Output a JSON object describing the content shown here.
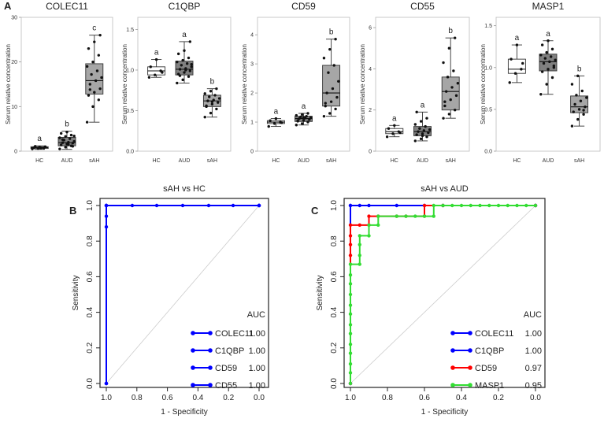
{
  "panels": {
    "a": "A",
    "b": "B",
    "c": "C"
  },
  "box_plots": [
    {
      "title": "COLEC11",
      "ylabel": "Serum relative concentration",
      "yticks": [
        0,
        10,
        20,
        30
      ],
      "ylim": [
        0,
        30
      ],
      "categories": [
        "HC",
        "AUD",
        "sAH"
      ],
      "colors": [
        "#ffffff",
        "#808080",
        "#a6a6a6"
      ],
      "letters": [
        "a",
        "b",
        "c"
      ],
      "boxes": [
        {
          "min": 0.4,
          "q1": 0.6,
          "median": 0.8,
          "q3": 1.0,
          "max": 1.2,
          "points": [
            0.5,
            0.6,
            0.7,
            0.8,
            0.9,
            1.0,
            1.1,
            0.7
          ]
        },
        {
          "min": 0.4,
          "q1": 1.2,
          "median": 1.9,
          "q3": 3.1,
          "max": 4.5,
          "points": [
            0.5,
            0.9,
            1.2,
            1.4,
            1.6,
            1.8,
            1.9,
            2.0,
            2.2,
            2.5,
            2.8,
            3.0,
            3.3,
            3.6,
            4.0,
            4.3,
            1.1,
            2.6,
            1.5,
            3.4
          ]
        },
        {
          "min": 6.5,
          "q1": 12.8,
          "median": 15.8,
          "q3": 19.6,
          "max": 26.0,
          "points": [
            6.5,
            10.0,
            11.5,
            12.5,
            13.2,
            14.0,
            15.0,
            15.8,
            16.5,
            17.2,
            18.0,
            19.0,
            20.0,
            21.5,
            23.0,
            24.5,
            26.0,
            13.8
          ]
        }
      ]
    },
    {
      "title": "C1QBP",
      "ylabel": "Serum relative concentration",
      "yticks": [
        0.0,
        0.5,
        1.0,
        1.5
      ],
      "ylim": [
        0,
        1.65
      ],
      "categories": [
        "HC",
        "AUD",
        "sAH"
      ],
      "colors": [
        "#ffffff",
        "#808080",
        "#a6a6a6"
      ],
      "letters": [
        "a",
        "a",
        "b"
      ],
      "boxes": [
        {
          "min": 0.91,
          "q1": 0.94,
          "median": 0.99,
          "q3": 1.04,
          "max": 1.13,
          "points": [
            0.91,
            0.94,
            0.99,
            1.04,
            1.13,
            0.97
          ]
        },
        {
          "min": 0.84,
          "q1": 0.94,
          "median": 1.01,
          "q3": 1.11,
          "max": 1.35,
          "points": [
            0.84,
            0.88,
            0.92,
            0.95,
            0.97,
            0.99,
            1.01,
            1.02,
            1.04,
            1.06,
            1.08,
            1.1,
            1.12,
            1.15,
            1.2,
            1.24,
            1.35,
            0.93,
            1.0,
            1.07
          ]
        },
        {
          "min": 0.42,
          "q1": 0.55,
          "median": 0.62,
          "q3": 0.69,
          "max": 0.77,
          "points": [
            0.42,
            0.47,
            0.52,
            0.55,
            0.58,
            0.6,
            0.62,
            0.63,
            0.65,
            0.67,
            0.69,
            0.71,
            0.74,
            0.77,
            0.56,
            0.61
          ]
        }
      ]
    },
    {
      "title": "CD59",
      "ylabel": "Serum relative concentration",
      "yticks": [
        0,
        1,
        2,
        3,
        4
      ],
      "ylim": [
        0,
        4.6
      ],
      "categories": [
        "HC",
        "AUD",
        "sAH"
      ],
      "colors": [
        "#ffffff",
        "#808080",
        "#a6a6a6"
      ],
      "letters": [
        "a",
        "a",
        "b"
      ],
      "boxes": [
        {
          "min": 0.85,
          "q1": 0.95,
          "median": 1.0,
          "q3": 1.05,
          "max": 1.12,
          "points": [
            0.85,
            0.95,
            1.0,
            1.05,
            1.12,
            0.98
          ]
        },
        {
          "min": 0.9,
          "q1": 1.02,
          "median": 1.12,
          "q3": 1.2,
          "max": 1.3,
          "points": [
            0.9,
            0.95,
            1.0,
            1.03,
            1.06,
            1.09,
            1.12,
            1.14,
            1.16,
            1.18,
            1.2,
            1.23,
            1.26,
            1.3,
            1.05,
            1.15
          ]
        },
        {
          "min": 1.2,
          "q1": 1.55,
          "median": 2.0,
          "q3": 2.95,
          "max": 3.85,
          "points": [
            1.2,
            1.3,
            1.45,
            1.55,
            1.7,
            1.85,
            2.0,
            2.15,
            2.4,
            2.7,
            2.95,
            3.2,
            3.5,
            3.85,
            1.65
          ]
        }
      ]
    },
    {
      "title": "CD55",
      "ylabel": "Serum relative concentration",
      "yticks": [
        0,
        2,
        4,
        6
      ],
      "ylim": [
        0,
        6.5
      ],
      "categories": [
        "HC",
        "AUD",
        "sAH"
      ],
      "colors": [
        "#ffffff",
        "#808080",
        "#a6a6a6"
      ],
      "letters": [
        "a",
        "a",
        "b"
      ],
      "boxes": [
        {
          "min": 0.7,
          "q1": 0.85,
          "median": 0.95,
          "q3": 1.1,
          "max": 1.25,
          "points": [
            0.7,
            0.85,
            0.95,
            1.1,
            1.25,
            0.9
          ]
        },
        {
          "min": 0.5,
          "q1": 0.75,
          "median": 0.95,
          "q3": 1.2,
          "max": 1.9,
          "points": [
            0.5,
            0.6,
            0.7,
            0.8,
            0.85,
            0.9,
            0.95,
            1.0,
            1.05,
            1.1,
            1.2,
            1.3,
            1.45,
            1.6,
            1.9,
            0.75
          ]
        },
        {
          "min": 1.6,
          "q1": 2.0,
          "median": 2.9,
          "q3": 3.6,
          "max": 5.5,
          "points": [
            1.6,
            1.8,
            2.0,
            2.2,
            2.5,
            2.7,
            2.9,
            3.1,
            3.3,
            3.6,
            3.9,
            4.3,
            5.0,
            5.5,
            2.4
          ]
        }
      ]
    },
    {
      "title": "MASP1",
      "ylabel": "Serum relative concentration",
      "yticks": [
        0.0,
        0.5,
        1.0,
        1.5
      ],
      "ylim": [
        0,
        1.6
      ],
      "categories": [
        "HC",
        "AUD",
        "sAH"
      ],
      "colors": [
        "#ffffff",
        "#808080",
        "#a6a6a6"
      ],
      "letters": [
        "a",
        "a",
        "b"
      ],
      "boxes": [
        {
          "min": 0.82,
          "q1": 0.93,
          "median": 0.98,
          "q3": 1.1,
          "max": 1.27,
          "points": [
            0.82,
            0.93,
            0.98,
            1.1,
            1.27,
            1.05
          ]
        },
        {
          "min": 0.68,
          "q1": 0.96,
          "median": 1.07,
          "q3": 1.16,
          "max": 1.32,
          "points": [
            0.68,
            0.8,
            0.88,
            0.95,
            0.98,
            1.02,
            1.05,
            1.07,
            1.09,
            1.11,
            1.13,
            1.15,
            1.18,
            1.22,
            1.27,
            1.32,
            1.0
          ]
        },
        {
          "min": 0.3,
          "q1": 0.46,
          "median": 0.53,
          "q3": 0.66,
          "max": 0.9,
          "points": [
            0.3,
            0.38,
            0.44,
            0.47,
            0.5,
            0.53,
            0.56,
            0.6,
            0.64,
            0.67,
            0.72,
            0.8,
            0.9,
            0.49
          ]
        }
      ]
    }
  ],
  "chart_data": [
    {
      "type": "line",
      "title": "sAH vs HC",
      "xlabel": "1 - Specificity",
      "ylabel": "Sensitivity",
      "xlim": [
        1.0,
        0.0
      ],
      "ylim": [
        0.0,
        1.0
      ],
      "xticks": [
        "1.0",
        "0.8",
        "0.6",
        "0.4",
        "0.2",
        "0.0"
      ],
      "yticks": [
        "0.0",
        "0.2",
        "0.4",
        "0.6",
        "0.8",
        "1.0"
      ],
      "legend_header": "AUC",
      "series": [
        {
          "name": "COLEC11",
          "auc": "1.00",
          "color": "#0000ff",
          "points": [
            [
              1.0,
              0.0
            ],
            [
              1.0,
              0.88
            ],
            [
              1.0,
              0.94
            ],
            [
              1.0,
              1.0
            ],
            [
              0.83,
              1.0
            ],
            [
              0.67,
              1.0
            ],
            [
              0.5,
              1.0
            ],
            [
              0.33,
              1.0
            ],
            [
              0.17,
              1.0
            ],
            [
              0.0,
              1.0
            ]
          ]
        },
        {
          "name": "C1QBP",
          "auc": "1.00",
          "color": "#0000ff",
          "points": [
            [
              1.0,
              0.0
            ],
            [
              1.0,
              1.0
            ],
            [
              0.0,
              1.0
            ]
          ]
        },
        {
          "name": "CD59",
          "auc": "1.00",
          "color": "#0000ff",
          "points": [
            [
              1.0,
              0.0
            ],
            [
              1.0,
              1.0
            ],
            [
              0.0,
              1.0
            ]
          ]
        },
        {
          "name": "CD55",
          "auc": "1.00",
          "color": "#0000ff",
          "points": [
            [
              1.0,
              0.0
            ],
            [
              1.0,
              1.0
            ],
            [
              0.0,
              1.0
            ]
          ]
        }
      ]
    },
    {
      "type": "line",
      "title": "sAH vs AUD",
      "xlabel": "1 - Specificity",
      "ylabel": "Sensitivity",
      "xlim": [
        1.0,
        0.0
      ],
      "ylim": [
        0.0,
        1.0
      ],
      "xticks": [
        "1.0",
        "0.8",
        "0.6",
        "0.4",
        "0.2",
        "0.0"
      ],
      "yticks": [
        "0.0",
        "0.2",
        "0.4",
        "0.6",
        "0.8",
        "1.0"
      ],
      "legend_header": "AUC",
      "series": [
        {
          "name": "COLEC11",
          "auc": "1.00",
          "color": "#0000ff",
          "points": [
            [
              1.0,
              0.0
            ],
            [
              1.0,
              1.0
            ],
            [
              0.95,
              1.0
            ],
            [
              0.9,
              1.0
            ],
            [
              0.75,
              1.0
            ],
            [
              0.6,
              1.0
            ],
            [
              0.5,
              1.0
            ],
            [
              0.0,
              1.0
            ]
          ]
        },
        {
          "name": "C1QBP",
          "auc": "1.00",
          "color": "#0000ff",
          "points": [
            [
              1.0,
              0.0
            ],
            [
              1.0,
              1.0
            ],
            [
              0.0,
              1.0
            ]
          ]
        },
        {
          "name": "CD59",
          "auc": "0.97",
          "color": "#ff0000",
          "points": [
            [
              1.0,
              0.0
            ],
            [
              1.0,
              0.72
            ],
            [
              1.0,
              0.78
            ],
            [
              1.0,
              0.83
            ],
            [
              1.0,
              0.89
            ],
            [
              0.95,
              0.89
            ],
            [
              0.9,
              0.89
            ],
            [
              0.9,
              0.94
            ],
            [
              0.85,
              0.94
            ],
            [
              0.75,
              0.94
            ],
            [
              0.7,
              0.94
            ],
            [
              0.6,
              0.94
            ],
            [
              0.6,
              1.0
            ],
            [
              0.5,
              1.0
            ],
            [
              0.0,
              1.0
            ]
          ]
        },
        {
          "name": "MASP1",
          "auc": "0.95",
          "color": "#33dd33",
          "points": [
            [
              1.0,
              0.0
            ],
            [
              1.0,
              0.06
            ],
            [
              1.0,
              0.11
            ],
            [
              1.0,
              0.17
            ],
            [
              1.0,
              0.22
            ],
            [
              1.0,
              0.28
            ],
            [
              1.0,
              0.33
            ],
            [
              1.0,
              0.39
            ],
            [
              1.0,
              0.44
            ],
            [
              1.0,
              0.5
            ],
            [
              1.0,
              0.56
            ],
            [
              1.0,
              0.61
            ],
            [
              1.0,
              0.67
            ],
            [
              0.95,
              0.67
            ],
            [
              0.95,
              0.72
            ],
            [
              0.95,
              0.78
            ],
            [
              0.95,
              0.83
            ],
            [
              0.9,
              0.83
            ],
            [
              0.9,
              0.89
            ],
            [
              0.85,
              0.89
            ],
            [
              0.85,
              0.94
            ],
            [
              0.75,
              0.94
            ],
            [
              0.7,
              0.94
            ],
            [
              0.65,
              0.94
            ],
            [
              0.6,
              0.94
            ],
            [
              0.55,
              0.94
            ],
            [
              0.55,
              1.0
            ],
            [
              0.5,
              1.0
            ],
            [
              0.45,
              1.0
            ],
            [
              0.4,
              1.0
            ],
            [
              0.35,
              1.0
            ],
            [
              0.3,
              1.0
            ],
            [
              0.25,
              1.0
            ],
            [
              0.2,
              1.0
            ],
            [
              0.15,
              1.0
            ],
            [
              0.1,
              1.0
            ],
            [
              0.05,
              1.0
            ],
            [
              0.0,
              1.0
            ]
          ]
        }
      ]
    }
  ]
}
